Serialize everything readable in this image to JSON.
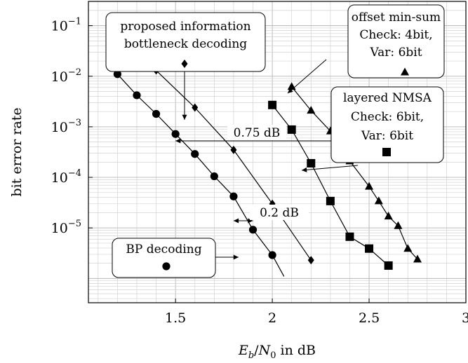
{
  "chart_data": {
    "type": "line",
    "xlabel": "E_b/N_0 in dB",
    "ylabel": "bit error rate",
    "xlim": [
      1.05,
      3.0
    ],
    "ylim_log10": [
      -6.48,
      -0.52
    ],
    "yscale": "log",
    "grid": true,
    "x_ticks": [
      1.5,
      2,
      2.5,
      3
    ],
    "x_tick_labels": [
      "1.5",
      "2",
      "2.5",
      "3"
    ],
    "y_tick_exponents": [
      -1,
      -2,
      -3,
      -4,
      -5
    ],
    "y_tick_base": "10",
    "series": [
      {
        "marker": "circle",
        "x": [
          1.2,
          1.3,
          1.4,
          1.5,
          1.6,
          1.7,
          1.8,
          1.9,
          2.0,
          2.06
        ],
        "y": [
          0.011,
          0.0042,
          0.0018,
          0.00072,
          0.00029,
          0.000105,
          4.2e-05,
          9.2e-06,
          2.9e-06,
          1.1e-06
        ],
        "marker_count": 9
      },
      {
        "marker": "diamond",
        "x": [
          1.4,
          1.6,
          1.8,
          2.0,
          2.2
        ],
        "y": [
          0.013,
          0.0024,
          0.00035,
          3e-05,
          2.3e-06
        ],
        "marker_count": 5
      },
      {
        "marker": "square",
        "x": [
          2.0,
          2.1,
          2.2,
          2.3,
          2.4,
          2.5,
          2.6
        ],
        "y": [
          0.0027,
          0.00088,
          0.00019,
          3.4e-05,
          6.7e-06,
          3.9e-06,
          1.8e-06
        ],
        "marker_count": 7
      },
      {
        "marker": "triangle",
        "x": [
          2.1,
          2.2,
          2.3,
          2.4,
          2.5,
          2.55,
          2.6,
          2.65,
          2.7,
          2.75
        ],
        "y": [
          0.0062,
          0.0021,
          0.00082,
          0.00021,
          6.6e-05,
          3.4e-05,
          1.7e-05,
          1.1e-05,
          3.9e-06,
          2.4e-06
        ],
        "marker_count": 10
      }
    ],
    "annotations": [
      {
        "id": "bp",
        "lines": [
          "BP decoding"
        ],
        "marker": "circle"
      },
      {
        "id": "ib",
        "lines": [
          "proposed information",
          "bottleneck decoding"
        ],
        "marker": "diamond"
      },
      {
        "id": "oms",
        "lines": [
          "offset min-sum",
          "Check: 4bit,",
          "Var: 6bit"
        ],
        "marker": "triangle"
      },
      {
        "id": "nmsa",
        "lines": [
          "layered NMSA",
          "Check: 6bit,",
          "Var: 6bit"
        ],
        "marker": "square"
      },
      {
        "id": "gap1",
        "lines": [
          "0.75 dB"
        ]
      },
      {
        "id": "gap2",
        "lines": [
          "0.2 dB"
        ]
      }
    ]
  }
}
